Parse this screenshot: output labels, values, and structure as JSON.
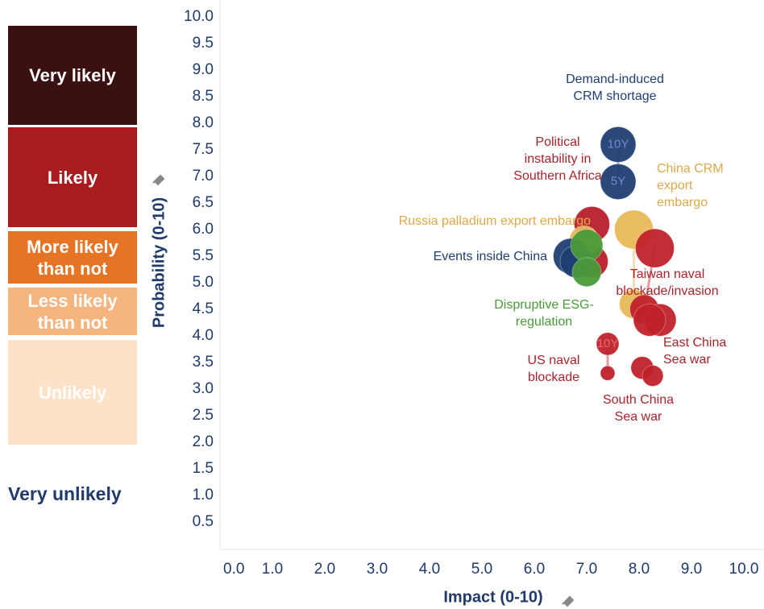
{
  "chart_data": {
    "type": "scatter",
    "xlabel": "Impact (0-10)",
    "ylabel": "Probability (0-10)",
    "xlim": [
      0,
      10
    ],
    "ylim": [
      0,
      10
    ],
    "xticks": [
      {
        "value": 0,
        "label": "0.0"
      },
      {
        "value": 1,
        "label": "1.0"
      },
      {
        "value": 2,
        "label": "2.0"
      },
      {
        "value": 3,
        "label": "3.0"
      },
      {
        "value": 4,
        "label": "4.0"
      },
      {
        "value": 5,
        "label": "5.0"
      },
      {
        "value": 6,
        "label": "6.0"
      },
      {
        "value": 7,
        "label": "7.0"
      },
      {
        "value": 8,
        "label": "8.0"
      },
      {
        "value": 9,
        "label": "9.0"
      },
      {
        "value": 10,
        "label": "10.0"
      }
    ],
    "yticks": [
      0.5,
      {
        "value": 1,
        "label": "1.0"
      },
      1.5,
      {
        "value": 2,
        "label": "2.0"
      },
      2.5,
      {
        "value": 3,
        "label": "3.0"
      },
      3.5,
      {
        "value": 4,
        "label": "4.0"
      },
      4.5,
      {
        "value": 5,
        "label": "5.0"
      },
      5.5,
      {
        "value": 6,
        "label": "6.0"
      },
      6.5,
      {
        "value": 7,
        "label": "7.0"
      },
      7.5,
      {
        "value": 8,
        "label": "8.0"
      },
      8.5,
      {
        "value": 9,
        "label": "9.0"
      },
      9.5,
      {
        "value": 10,
        "label": "10.0"
      }
    ],
    "likelihood_scale": [
      {
        "label": "Very likely",
        "color": "#3b1010"
      },
      {
        "label": "Likely",
        "color": "#a81c1e"
      },
      {
        "label": "More likely than not",
        "color": "#e57424"
      },
      {
        "label": "Less likely than not",
        "color": "#f6b47e"
      },
      {
        "label": "Unlikely",
        "color": "#fce2c8"
      },
      {
        "label": "Very unlikely",
        "color": null
      }
    ],
    "series": [
      {
        "name": "Demand-induced CRM shortage",
        "color": "#1f3f73",
        "x": [
          7.6,
          7.6
        ],
        "values": [
          7.6,
          6.9
        ],
        "sizes": [
          22,
          22
        ],
        "point_labels": [
          "10Y",
          "5Y"
        ]
      },
      {
        "name": "Political instability in Southern Africa",
        "color": "#b8202a",
        "x": [
          7.1,
          7.1
        ],
        "values": [
          6.1,
          5.4
        ],
        "sizes": [
          22,
          20
        ]
      },
      {
        "name": "Russia palladium export embargo",
        "color": "#e8b85a",
        "x": [
          6.95
        ],
        "values": [
          5.8
        ],
        "sizes": [
          18
        ]
      },
      {
        "name": "Events inside China",
        "color": "#1f3f73",
        "x": [
          6.7,
          6.8
        ],
        "values": [
          5.5,
          5.4
        ],
        "sizes": [
          22,
          20
        ]
      },
      {
        "name": "Dispruptive ESG-regulation",
        "color": "#4a9a3a",
        "x": [
          7.0,
          7.0
        ],
        "values": [
          5.7,
          5.2
        ],
        "sizes": [
          20,
          18
        ]
      },
      {
        "name": "China CRM export embargo",
        "color": "#e8b85a",
        "x": [
          7.9,
          7.9
        ],
        "values": [
          6.0,
          4.6
        ],
        "sizes": [
          24,
          18
        ]
      },
      {
        "name": "Taiwan naval blockade/invasion",
        "color": "#c0222a",
        "x": [
          8.3,
          8.1
        ],
        "values": [
          5.65,
          4.5
        ],
        "sizes": [
          24,
          18
        ]
      },
      {
        "name": "East China Sea war",
        "color": "#c0222a",
        "x": [
          8.4,
          8.2
        ],
        "values": [
          4.3,
          4.3
        ],
        "sizes": [
          20,
          20
        ]
      },
      {
        "name": "US naval blockade",
        "color": "#c0222a",
        "x": [
          7.4,
          7.4
        ],
        "values": [
          3.85,
          3.3
        ],
        "sizes": [
          14,
          9
        ],
        "point_labels": [
          "10Y",
          null
        ]
      },
      {
        "name": "South China Sea war",
        "color": "#c0222a",
        "x": [
          8.06,
          8.26
        ],
        "values": [
          3.4,
          3.25
        ],
        "sizes": [
          14,
          13
        ]
      }
    ]
  }
}
